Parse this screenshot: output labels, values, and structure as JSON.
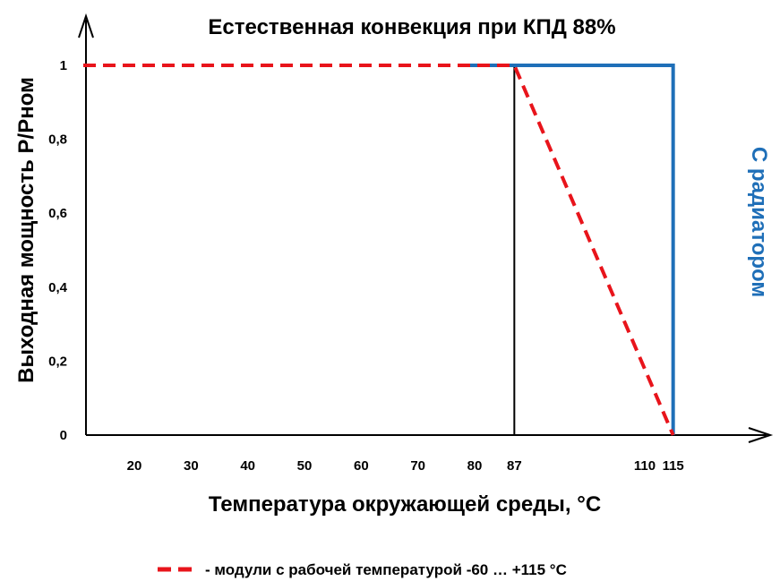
{
  "chart_data": {
    "type": "line",
    "title": "Естественная конвекция при КПД 88%",
    "xlabel": "Температура окружающей среды, °C",
    "ylabel": "Выходная мощность P/Pном",
    "x_ticks": [
      {
        "label": "20",
        "value": 20
      },
      {
        "label": "30",
        "value": 30
      },
      {
        "label": "40",
        "value": 40
      },
      {
        "label": "50",
        "value": 50
      },
      {
        "label": "60",
        "value": 60
      },
      {
        "label": "70",
        "value": 70
      },
      {
        "label": "80",
        "value": 80
      },
      {
        "label": "87",
        "value": 87
      },
      {
        "label": "110",
        "value": 110
      },
      {
        "label": "115",
        "value": 115
      }
    ],
    "y_ticks": [
      {
        "label": "0",
        "value": 0
      },
      {
        "label": "0,2",
        "value": 0.2
      },
      {
        "label": "0,4",
        "value": 0.4
      },
      {
        "label": "0,6",
        "value": 0.6
      },
      {
        "label": "0,8",
        "value": 0.8
      },
      {
        "label": "1",
        "value": 1
      }
    ],
    "xlim": [
      11,
      131
    ],
    "ylim": [
      0,
      1.0
    ],
    "grid": false,
    "legend_position": "bottom",
    "series": [
      {
        "name": "- модули с рабочей температурой -60 … +115 °C",
        "color": "#e8141b",
        "style": "dashed",
        "x": [
          11,
          87,
          115
        ],
        "y": [
          1,
          1,
          0
        ]
      },
      {
        "name": "С радиатором",
        "color": "#1f6fb8",
        "style": "solid",
        "x": [
          78,
          115,
          115
        ],
        "y": [
          1,
          1,
          0
        ]
      }
    ],
    "reference_lines": [
      {
        "x": 87,
        "y_from": 0,
        "y_to": 1,
        "color": "#000000"
      }
    ],
    "annotations": [
      {
        "text": "С радиатором",
        "color": "#1f6fb8",
        "orientation": "vertical"
      }
    ]
  }
}
